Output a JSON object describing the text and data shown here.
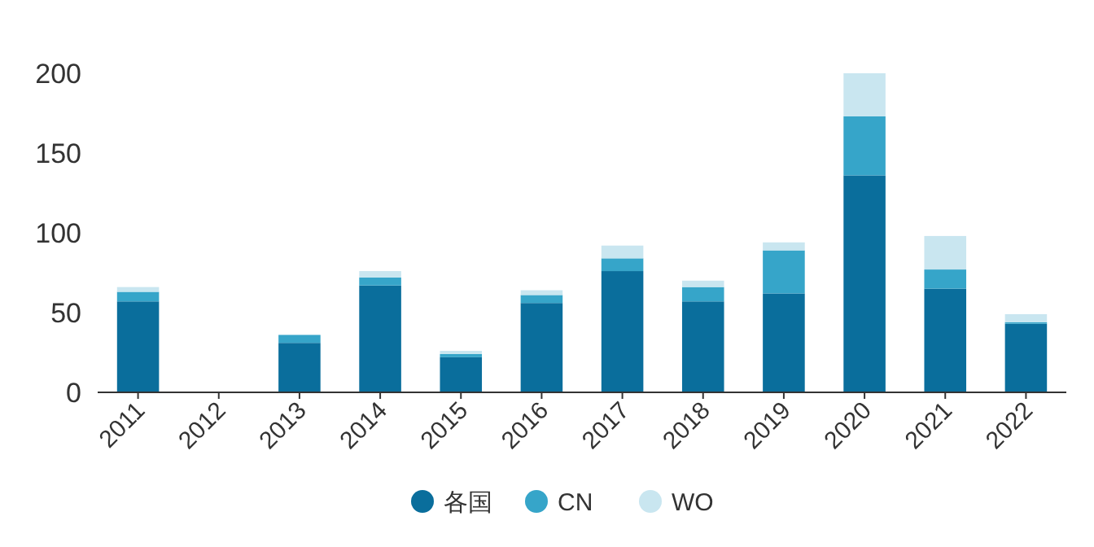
{
  "chart_data": {
    "type": "bar",
    "stacked": true,
    "categories": [
      "2011",
      "2012",
      "2013",
      "2014",
      "2015",
      "2016",
      "2017",
      "2018",
      "2019",
      "2020",
      "2021",
      "2022"
    ],
    "series": [
      {
        "name": "各国",
        "color": "#0a6e9c",
        "values": [
          57,
          0,
          31,
          67,
          22,
          56,
          76,
          57,
          62,
          136,
          65,
          43
        ]
      },
      {
        "name": "CN",
        "color": "#36a5c9",
        "values": [
          6,
          0,
          5,
          5,
          2,
          5,
          8,
          9,
          27,
          37,
          12,
          1
        ]
      },
      {
        "name": "WO",
        "color": "#c9e6f0",
        "values": [
          3,
          0,
          0,
          4,
          2,
          3,
          8,
          4,
          5,
          27,
          21,
          5
        ]
      }
    ],
    "ylim": [
      0,
      200
    ],
    "yticks": [
      0,
      50,
      100,
      150,
      200
    ],
    "grid": false,
    "legend": "bottom"
  }
}
